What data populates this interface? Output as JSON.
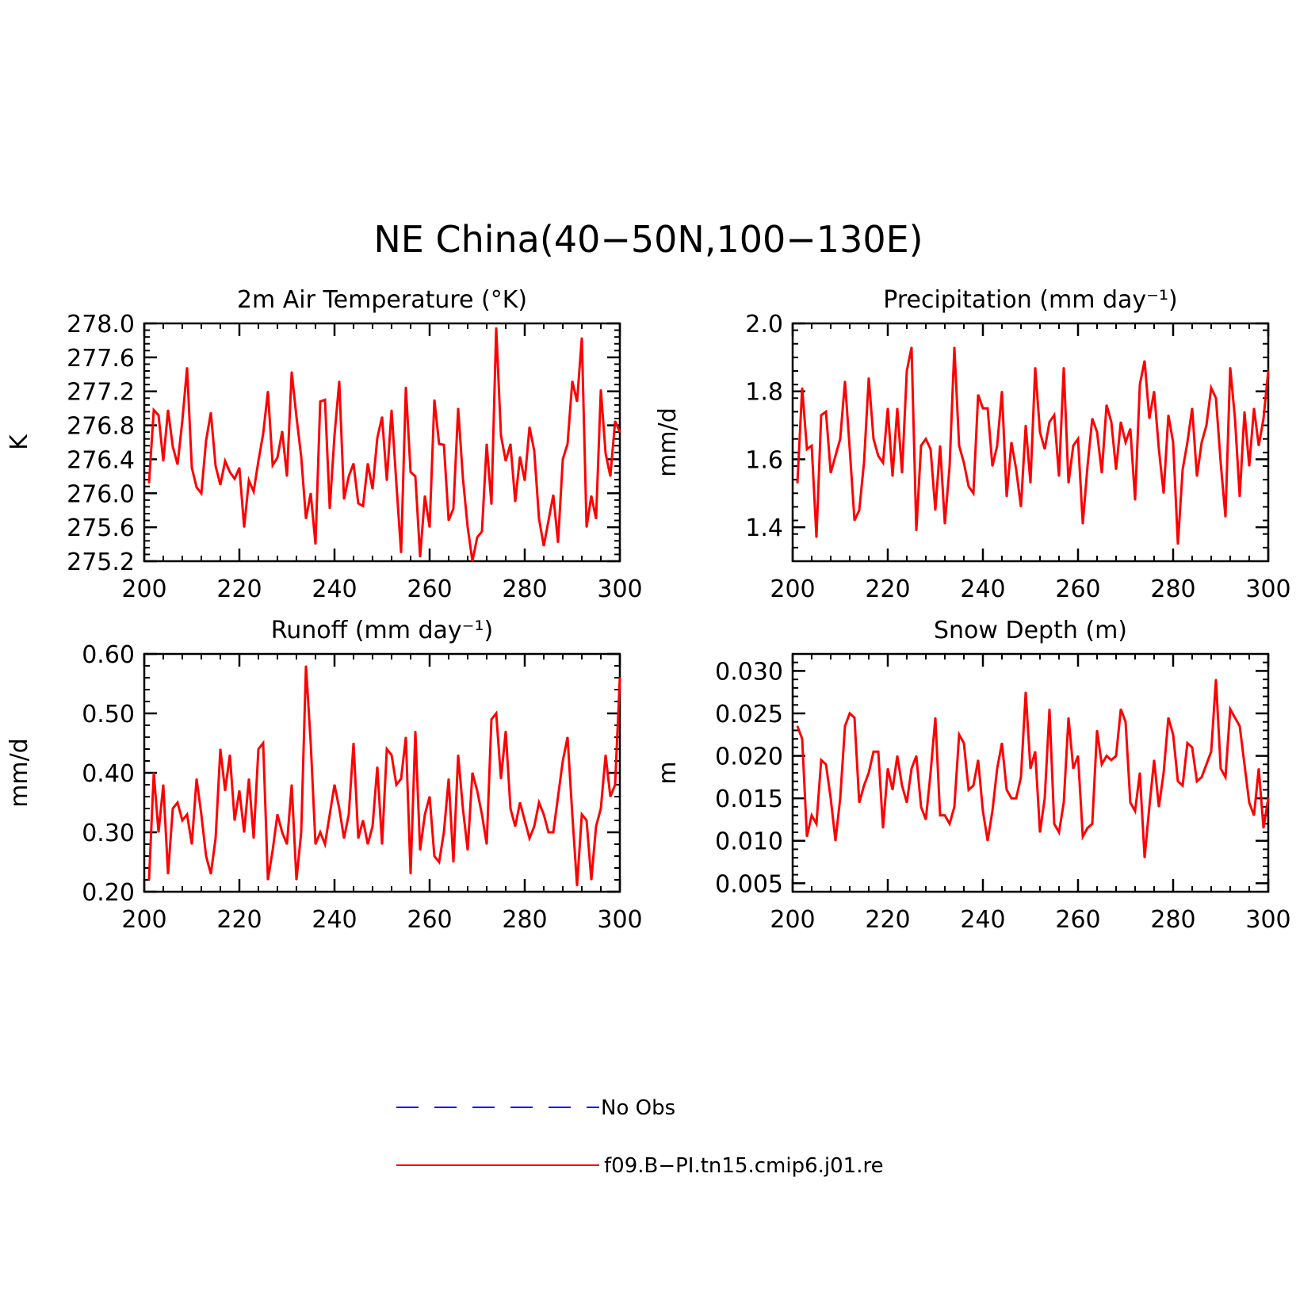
{
  "figure_title": "NE China(40−50N,100−130E)",
  "legend": [
    {
      "label": "No Obs",
      "color": "#0000ff",
      "dash": true
    },
    {
      "label": "f09.B−PI.tn15.cmip6.j01.re",
      "color": "#ff0000",
      "dash": false
    }
  ],
  "chart_data": [
    {
      "type": "line",
      "title": "2m Air Temperature (°K)",
      "ylabel": "K",
      "xlim": [
        200,
        300
      ],
      "ylim": [
        275.2,
        278.0
      ],
      "xticks": [
        "200",
        "220",
        "240",
        "260",
        "280",
        "300"
      ],
      "yticks": [
        "275.2",
        "275.6",
        "276.0",
        "276.4",
        "276.8",
        "277.2",
        "277.6",
        "278.0"
      ],
      "series": [
        {
          "color": "#ff0000",
          "x_start": 201,
          "values": [
            276.12,
            276.98,
            276.92,
            276.38,
            276.98,
            276.55,
            276.34,
            276.85,
            277.48,
            276.3,
            276.07,
            276.0,
            276.62,
            276.95,
            276.32,
            276.1,
            276.38,
            276.25,
            276.17,
            276.3,
            275.6,
            276.15,
            276.02,
            276.38,
            276.7,
            277.2,
            276.33,
            276.42,
            276.73,
            276.2,
            277.43,
            276.9,
            276.43,
            275.7,
            276.0,
            275.4,
            277.08,
            277.1,
            275.82,
            276.68,
            277.32,
            275.93,
            276.2,
            276.35,
            275.88,
            275.85,
            276.35,
            276.05,
            276.65,
            276.9,
            276.15,
            276.98,
            276.12,
            275.3,
            277.25,
            276.25,
            276.2,
            275.25,
            275.97,
            275.6,
            277.1,
            276.58,
            276.57,
            275.68,
            275.82,
            277.0,
            276.18,
            275.6,
            275.2,
            275.48,
            275.55,
            276.58,
            275.87,
            277.95,
            276.68,
            276.38,
            276.58,
            275.9,
            276.43,
            276.15,
            276.78,
            276.5,
            275.7,
            275.38,
            275.68,
            275.98,
            275.42,
            276.4,
            276.58,
            277.32,
            277.08,
            277.83,
            275.6,
            275.97,
            275.7,
            277.22,
            276.47,
            276.2,
            276.85,
            276.72
          ]
        }
      ]
    },
    {
      "type": "line",
      "title": "Precipitation (mm day⁻¹)",
      "ylabel": "mm/d",
      "xlim": [
        200,
        300
      ],
      "ylim": [
        1.3,
        2.0
      ],
      "xticks": [
        "200",
        "220",
        "240",
        "260",
        "280",
        "300"
      ],
      "yticks": [
        "1.4",
        "1.6",
        "1.8",
        "2.0"
      ],
      "series": [
        {
          "color": "#ff0000",
          "x_start": 201,
          "values": [
            1.53,
            1.81,
            1.63,
            1.64,
            1.37,
            1.73,
            1.74,
            1.56,
            1.61,
            1.66,
            1.83,
            1.63,
            1.42,
            1.45,
            1.59,
            1.84,
            1.66,
            1.61,
            1.59,
            1.75,
            1.55,
            1.75,
            1.56,
            1.86,
            1.93,
            1.39,
            1.64,
            1.66,
            1.63,
            1.45,
            1.64,
            1.41,
            1.58,
            1.93,
            1.64,
            1.59,
            1.52,
            1.5,
            1.79,
            1.75,
            1.75,
            1.58,
            1.64,
            1.8,
            1.49,
            1.65,
            1.57,
            1.46,
            1.7,
            1.53,
            1.87,
            1.68,
            1.63,
            1.71,
            1.73,
            1.55,
            1.87,
            1.53,
            1.64,
            1.66,
            1.41,
            1.58,
            1.72,
            1.68,
            1.56,
            1.76,
            1.71,
            1.57,
            1.71,
            1.65,
            1.69,
            1.48,
            1.82,
            1.89,
            1.72,
            1.8,
            1.63,
            1.5,
            1.73,
            1.65,
            1.35,
            1.57,
            1.65,
            1.75,
            1.55,
            1.65,
            1.7,
            1.81,
            1.78,
            1.59,
            1.43,
            1.87,
            1.72,
            1.49,
            1.74,
            1.58,
            1.75,
            1.64,
            1.72,
            1.86
          ]
        }
      ]
    },
    {
      "type": "line",
      "title": "Runoff (mm day⁻¹)",
      "ylabel": "mm/d",
      "xlim": [
        200,
        300
      ],
      "ylim": [
        0.2,
        0.6
      ],
      "xticks": [
        "200",
        "220",
        "240",
        "260",
        "280",
        "300"
      ],
      "yticks": [
        "0.20",
        "0.30",
        "0.40",
        "0.50",
        "0.60"
      ],
      "series": [
        {
          "color": "#ff0000",
          "x_start": 201,
          "values": [
            0.22,
            0.4,
            0.3,
            0.38,
            0.23,
            0.34,
            0.35,
            0.32,
            0.33,
            0.28,
            0.39,
            0.33,
            0.26,
            0.23,
            0.29,
            0.44,
            0.37,
            0.43,
            0.32,
            0.37,
            0.3,
            0.39,
            0.29,
            0.44,
            0.45,
            0.22,
            0.27,
            0.33,
            0.3,
            0.28,
            0.38,
            0.22,
            0.3,
            0.58,
            0.45,
            0.28,
            0.3,
            0.28,
            0.33,
            0.38,
            0.34,
            0.29,
            0.33,
            0.45,
            0.29,
            0.32,
            0.28,
            0.31,
            0.41,
            0.28,
            0.44,
            0.43,
            0.38,
            0.39,
            0.46,
            0.23,
            0.47,
            0.27,
            0.33,
            0.36,
            0.26,
            0.25,
            0.3,
            0.39,
            0.25,
            0.43,
            0.34,
            0.27,
            0.4,
            0.37,
            0.33,
            0.28,
            0.49,
            0.5,
            0.39,
            0.47,
            0.34,
            0.31,
            0.35,
            0.32,
            0.29,
            0.31,
            0.35,
            0.33,
            0.3,
            0.3,
            0.36,
            0.42,
            0.46,
            0.33,
            0.21,
            0.33,
            0.32,
            0.22,
            0.31,
            0.34,
            0.43,
            0.36,
            0.38,
            0.56
          ]
        }
      ]
    },
    {
      "type": "line",
      "title": "Snow Depth (m)",
      "ylabel": "m",
      "xlim": [
        200,
        300
      ],
      "ylim": [
        0.004,
        0.032
      ],
      "xticks": [
        "200",
        "220",
        "240",
        "260",
        "280",
        "300"
      ],
      "yticks": [
        "0.005",
        "0.010",
        "0.015",
        "0.020",
        "0.025",
        "0.030"
      ],
      "series": [
        {
          "color": "#ff0000",
          "x_start": 201,
          "values": [
            0.0235,
            0.022,
            0.0105,
            0.013,
            0.012,
            0.0195,
            0.019,
            0.015,
            0.01,
            0.015,
            0.0235,
            0.025,
            0.0245,
            0.0145,
            0.0165,
            0.018,
            0.0205,
            0.0205,
            0.0115,
            0.0185,
            0.016,
            0.02,
            0.0165,
            0.0145,
            0.0185,
            0.02,
            0.014,
            0.0125,
            0.018,
            0.0245,
            0.013,
            0.013,
            0.012,
            0.014,
            0.0225,
            0.0215,
            0.016,
            0.0165,
            0.0195,
            0.0135,
            0.01,
            0.0135,
            0.0185,
            0.0215,
            0.016,
            0.015,
            0.015,
            0.0175,
            0.0275,
            0.0185,
            0.0205,
            0.011,
            0.015,
            0.0255,
            0.012,
            0.011,
            0.0145,
            0.0245,
            0.0185,
            0.02,
            0.0105,
            0.0115,
            0.012,
            0.023,
            0.019,
            0.02,
            0.0195,
            0.02,
            0.0255,
            0.024,
            0.0145,
            0.0135,
            0.018,
            0.008,
            0.014,
            0.0195,
            0.014,
            0.018,
            0.0245,
            0.0225,
            0.017,
            0.0165,
            0.0215,
            0.021,
            0.017,
            0.0175,
            0.019,
            0.0205,
            0.029,
            0.0185,
            0.0175,
            0.0255,
            0.0245,
            0.0235,
            0.019,
            0.0145,
            0.013,
            0.0185,
            0.0115,
            0.015
          ]
        }
      ]
    }
  ]
}
